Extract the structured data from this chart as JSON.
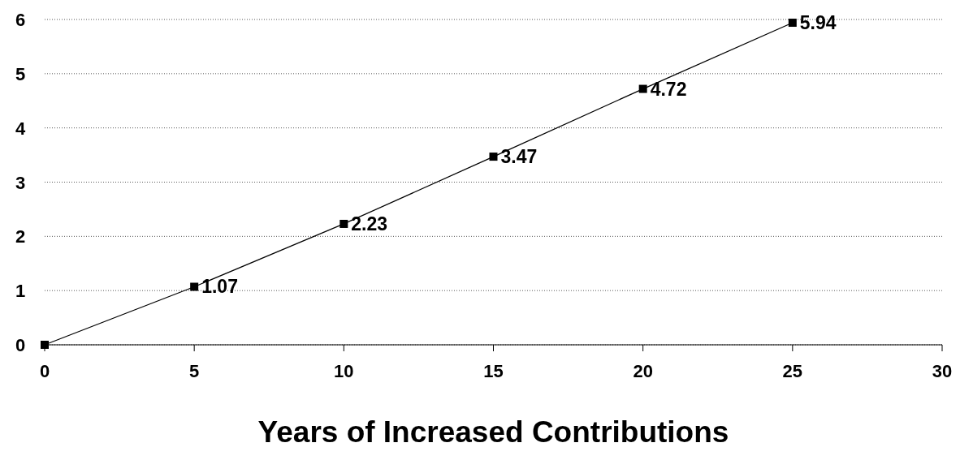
{
  "chart_data": {
    "type": "line",
    "xlabel": "Years of Increased Contributions",
    "x": [
      0,
      5,
      10,
      15,
      20,
      25
    ],
    "series": [
      {
        "color": "#000000",
        "values": [
          0,
          1.07,
          2.23,
          3.47,
          4.72,
          5.94
        ],
        "value_labels": [
          null,
          "1.07",
          "2.23",
          "3.47",
          "4.72",
          "5.94"
        ]
      }
    ],
    "xlim": [
      0,
      30
    ],
    "xticks": [
      0,
      5,
      10,
      15,
      20,
      25,
      30
    ],
    "ylim": [
      0,
      6
    ],
    "yticks": [
      0,
      1,
      2,
      3,
      4,
      5,
      6
    ],
    "grid": "y",
    "marker": "square",
    "line_style": "solid"
  }
}
